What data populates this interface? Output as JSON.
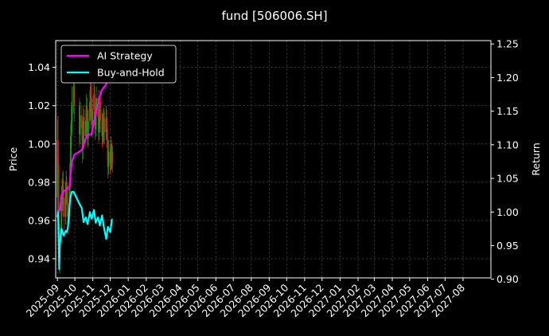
{
  "chart_data": {
    "type": "line",
    "title": "fund [506006.SH]",
    "ylabel_left": "Price",
    "ylabel_right": "Return",
    "ylim_left": [
      0.93,
      1.054
    ],
    "ylim_right": [
      0.902,
      1.255
    ],
    "yticks_left": [
      "0.94",
      "0.96",
      "0.98",
      "1.00",
      "1.02",
      "1.04"
    ],
    "yticks_right": [
      "0.90",
      "0.95",
      "1.00",
      "1.05",
      "1.10",
      "1.15",
      "1.20",
      "1.25"
    ],
    "xlim": [
      "2025-08-29",
      "2027-09-18"
    ],
    "xticks": [
      "2025-09",
      "2025-10",
      "2025-11",
      "2025-12",
      "2026-01",
      "2026-02",
      "2026-03",
      "2026-04",
      "2026-05",
      "2026-06",
      "2026-07",
      "2026-08",
      "2026-09",
      "2026-10",
      "2026-11",
      "2026-12",
      "2027-01",
      "2027-02",
      "2027-03",
      "2027-04",
      "2027-05",
      "2027-06",
      "2027-07",
      "2027-08"
    ],
    "grid": true,
    "legend_position": "top-left",
    "colors": {
      "background": "#000000",
      "up_candle": "#1f9e1f",
      "down_candle": "#d62020",
      "ai_strategy": "#ff00ff",
      "buy_and_hold": "#00ffff",
      "grid": "#555555"
    },
    "candles": [
      {
        "date": "2025-09-01",
        "open": 0.972,
        "close": 1.002,
        "high": 1.013,
        "low": 0.962
      },
      {
        "date": "2025-09-02",
        "open": 1.002,
        "close": 0.99,
        "high": 1.015,
        "low": 0.985
      },
      {
        "date": "2025-09-03",
        "open": 0.99,
        "close": 0.96,
        "high": 0.995,
        "low": 0.952
      },
      {
        "date": "2025-09-04",
        "open": 0.96,
        "close": 0.94,
        "high": 0.965,
        "low": 0.935
      },
      {
        "date": "2025-09-05",
        "open": 0.94,
        "close": 0.952,
        "high": 0.958,
        "low": 0.932
      },
      {
        "date": "2025-09-08",
        "open": 0.952,
        "close": 0.972,
        "high": 0.978,
        "low": 0.948
      },
      {
        "date": "2025-09-09",
        "open": 0.972,
        "close": 0.968,
        "high": 0.982,
        "low": 0.962
      },
      {
        "date": "2025-09-10",
        "open": 0.968,
        "close": 0.981,
        "high": 0.985,
        "low": 0.965
      },
      {
        "date": "2025-09-11",
        "open": 0.981,
        "close": 0.972,
        "high": 0.986,
        "low": 0.968
      },
      {
        "date": "2025-09-12",
        "open": 0.972,
        "close": 0.962,
        "high": 0.976,
        "low": 0.955
      },
      {
        "date": "2025-09-15",
        "open": 0.962,
        "close": 0.972,
        "high": 0.98,
        "low": 0.958
      },
      {
        "date": "2025-09-16",
        "open": 0.972,
        "close": 0.98,
        "high": 0.986,
        "low": 0.969
      },
      {
        "date": "2025-09-17",
        "open": 0.98,
        "close": 0.975,
        "high": 0.983,
        "low": 0.968
      },
      {
        "date": "2025-09-18",
        "open": 0.975,
        "close": 0.969,
        "high": 0.978,
        "low": 0.962
      },
      {
        "date": "2025-09-19",
        "open": 0.969,
        "close": 0.962,
        "high": 0.972,
        "low": 0.955
      },
      {
        "date": "2025-09-22",
        "open": 0.962,
        "close": 0.978,
        "high": 0.983,
        "low": 0.958
      },
      {
        "date": "2025-09-23",
        "open": 0.978,
        "close": 0.99,
        "high": 0.996,
        "low": 0.974
      },
      {
        "date": "2025-09-24",
        "open": 0.99,
        "close": 1.004,
        "high": 1.01,
        "low": 0.986
      },
      {
        "date": "2025-09-25",
        "open": 1.004,
        "close": 1.012,
        "high": 1.02,
        "low": 0.998
      },
      {
        "date": "2025-09-26",
        "open": 1.012,
        "close": 1.022,
        "high": 1.03,
        "low": 1.006
      },
      {
        "date": "2025-09-29",
        "open": 1.022,
        "close": 1.03,
        "high": 1.038,
        "low": 1.016
      },
      {
        "date": "2025-09-30",
        "open": 1.03,
        "close": 1.02,
        "high": 1.034,
        "low": 1.012
      },
      {
        "date": "2025-10-09",
        "open": 1.02,
        "close": 1.005,
        "high": 1.024,
        "low": 0.998
      },
      {
        "date": "2025-10-10",
        "open": 1.005,
        "close": 1.015,
        "high": 1.022,
        "low": 1.0
      },
      {
        "date": "2025-10-13",
        "open": 1.015,
        "close": 1.008,
        "high": 1.02,
        "low": 1.002
      },
      {
        "date": "2025-10-14",
        "open": 1.008,
        "close": 0.997,
        "high": 1.012,
        "low": 0.99
      },
      {
        "date": "2025-10-15",
        "open": 0.997,
        "close": 1.006,
        "high": 1.012,
        "low": 0.992
      },
      {
        "date": "2025-10-16",
        "open": 1.006,
        "close": 1.014,
        "high": 1.02,
        "low": 1.0
      },
      {
        "date": "2025-10-17",
        "open": 1.014,
        "close": 1.004,
        "high": 1.018,
        "low": 0.998
      },
      {
        "date": "2025-10-20",
        "open": 1.004,
        "close": 1.012,
        "high": 1.018,
        "low": 1.0
      },
      {
        "date": "2025-10-21",
        "open": 1.012,
        "close": 1.02,
        "high": 1.026,
        "low": 1.006
      },
      {
        "date": "2025-10-22",
        "open": 1.02,
        "close": 1.012,
        "high": 1.024,
        "low": 1.006
      },
      {
        "date": "2025-10-23",
        "open": 1.012,
        "close": 1.003,
        "high": 1.016,
        "low": 0.998
      },
      {
        "date": "2025-10-24",
        "open": 1.003,
        "close": 1.012,
        "high": 1.018,
        "low": 0.999
      },
      {
        "date": "2025-10-27",
        "open": 1.012,
        "close": 1.022,
        "high": 1.028,
        "low": 1.008
      },
      {
        "date": "2025-10-28",
        "open": 1.022,
        "close": 1.03,
        "high": 1.036,
        "low": 1.016
      },
      {
        "date": "2025-10-29",
        "open": 1.03,
        "close": 1.02,
        "high": 1.034,
        "low": 1.014
      },
      {
        "date": "2025-10-30",
        "open": 1.02,
        "close": 1.01,
        "high": 1.024,
        "low": 1.004
      },
      {
        "date": "2025-10-31",
        "open": 1.01,
        "close": 1.018,
        "high": 1.024,
        "low": 1.004
      },
      {
        "date": "2025-11-03",
        "open": 1.018,
        "close": 1.026,
        "high": 1.032,
        "low": 1.012
      },
      {
        "date": "2025-11-04",
        "open": 1.026,
        "close": 1.016,
        "high": 1.03,
        "low": 1.01
      },
      {
        "date": "2025-11-05",
        "open": 1.016,
        "close": 1.008,
        "high": 1.02,
        "low": 1.002
      },
      {
        "date": "2025-11-06",
        "open": 1.008,
        "close": 1.016,
        "high": 1.022,
        "low": 1.004
      },
      {
        "date": "2025-11-07",
        "open": 1.016,
        "close": 1.024,
        "high": 1.03,
        "low": 1.01
      },
      {
        "date": "2025-11-10",
        "open": 1.024,
        "close": 1.014,
        "high": 1.028,
        "low": 1.008
      },
      {
        "date": "2025-11-11",
        "open": 1.014,
        "close": 1.006,
        "high": 1.018,
        "low": 1.0
      },
      {
        "date": "2025-11-12",
        "open": 1.006,
        "close": 1.014,
        "high": 1.02,
        "low": 1.002
      },
      {
        "date": "2025-11-13",
        "open": 1.014,
        "close": 1.022,
        "high": 1.028,
        "low": 1.008
      },
      {
        "date": "2025-11-14",
        "open": 1.022,
        "close": 1.012,
        "high": 1.026,
        "low": 1.006
      },
      {
        "date": "2025-11-17",
        "open": 1.012,
        "close": 1.004,
        "high": 1.016,
        "low": 0.998
      },
      {
        "date": "2025-11-18",
        "open": 1.004,
        "close": 1.012,
        "high": 1.018,
        "low": 1.0
      },
      {
        "date": "2025-11-19",
        "open": 1.012,
        "close": 1.005,
        "high": 1.016,
        "low": 0.999
      },
      {
        "date": "2025-11-20",
        "open": 1.005,
        "close": 1.013,
        "high": 1.019,
        "low": 1.001
      },
      {
        "date": "2025-11-21",
        "open": 1.013,
        "close": 1.006,
        "high": 1.017,
        "low": 1.0
      },
      {
        "date": "2025-11-24",
        "open": 1.006,
        "close": 1.014,
        "high": 1.02,
        "low": 1.002
      },
      {
        "date": "2025-11-25",
        "open": 1.014,
        "close": 1.008,
        "high": 1.018,
        "low": 1.002
      },
      {
        "date": "2025-11-26",
        "open": 1.008,
        "close": 0.998,
        "high": 1.012,
        "low": 0.992
      },
      {
        "date": "2025-11-27",
        "open": 0.998,
        "close": 0.988,
        "high": 1.002,
        "low": 0.982
      },
      {
        "date": "2025-11-28",
        "open": 0.988,
        "close": 0.996,
        "high": 1.002,
        "low": 0.984
      },
      {
        "date": "2025-12-01",
        "open": 0.996,
        "close": 0.99,
        "high": 1.0,
        "low": 0.984
      },
      {
        "date": "2025-12-02",
        "open": 0.99,
        "close": 0.998,
        "high": 1.004,
        "low": 0.986
      },
      {
        "date": "2025-12-03",
        "open": 0.998,
        "close": 0.992,
        "high": 1.002,
        "low": 0.986
      },
      {
        "date": "2025-12-04",
        "open": 0.992,
        "close": 0.996,
        "high": 1.0,
        "low": 0.987
      },
      {
        "date": "2025-12-05",
        "open": 0.996,
        "close": 0.99,
        "high": 0.999,
        "low": 0.985
      }
    ],
    "series": [
      {
        "name": "AI Strategy",
        "color": "#ff00ff",
        "axis": "right",
        "x": [
          "2025-09-01",
          "2025-09-03",
          "2025-09-05",
          "2025-09-08",
          "2025-09-10",
          "2025-09-12",
          "2025-09-16",
          "2025-09-18",
          "2025-09-22",
          "2025-09-24",
          "2025-09-26",
          "2025-09-30",
          "2025-10-13",
          "2025-10-16",
          "2025-10-20",
          "2025-10-23",
          "2025-10-27",
          "2025-10-30",
          "2025-11-03",
          "2025-11-06",
          "2025-11-10",
          "2025-11-13",
          "2025-11-17",
          "2025-11-20",
          "2025-11-24",
          "2025-11-27",
          "2025-12-01",
          "2025-12-04"
        ],
        "values": [
          0.993,
          1.003,
          1.002,
          1.025,
          1.028,
          1.032,
          1.032,
          1.035,
          1.038,
          1.06,
          1.075,
          1.085,
          1.092,
          1.1,
          1.11,
          1.115,
          1.115,
          1.117,
          1.135,
          1.148,
          1.16,
          1.172,
          1.182,
          1.185,
          1.19,
          1.205,
          1.225,
          1.243
        ]
      },
      {
        "name": "Buy-and-Hold",
        "color": "#00ffff",
        "axis": "right",
        "x": [
          "2025-09-01",
          "2025-09-02",
          "2025-09-03",
          "2025-09-04",
          "2025-09-05",
          "2025-09-08",
          "2025-09-10",
          "2025-09-12",
          "2025-09-15",
          "2025-09-17",
          "2025-09-19",
          "2025-09-22",
          "2025-09-24",
          "2025-09-26",
          "2025-09-29",
          "2025-10-09",
          "2025-10-13",
          "2025-10-16",
          "2025-10-20",
          "2025-10-23",
          "2025-10-27",
          "2025-10-30",
          "2025-11-03",
          "2025-11-06",
          "2025-11-10",
          "2025-11-13",
          "2025-11-17",
          "2025-11-20",
          "2025-11-24",
          "2025-11-27",
          "2025-12-01",
          "2025-12-04"
        ],
        "values": [
          0.992,
          1.0,
          0.965,
          0.915,
          0.95,
          0.975,
          0.97,
          0.965,
          0.972,
          0.97,
          0.976,
          1.01,
          1.025,
          1.03,
          1.03,
          1.012,
          1.006,
          0.985,
          0.992,
          0.982,
          1.0,
          0.99,
          1.003,
          0.984,
          0.992,
          0.98,
          0.995,
          0.978,
          0.96,
          0.978,
          0.97,
          0.99
        ]
      }
    ]
  }
}
